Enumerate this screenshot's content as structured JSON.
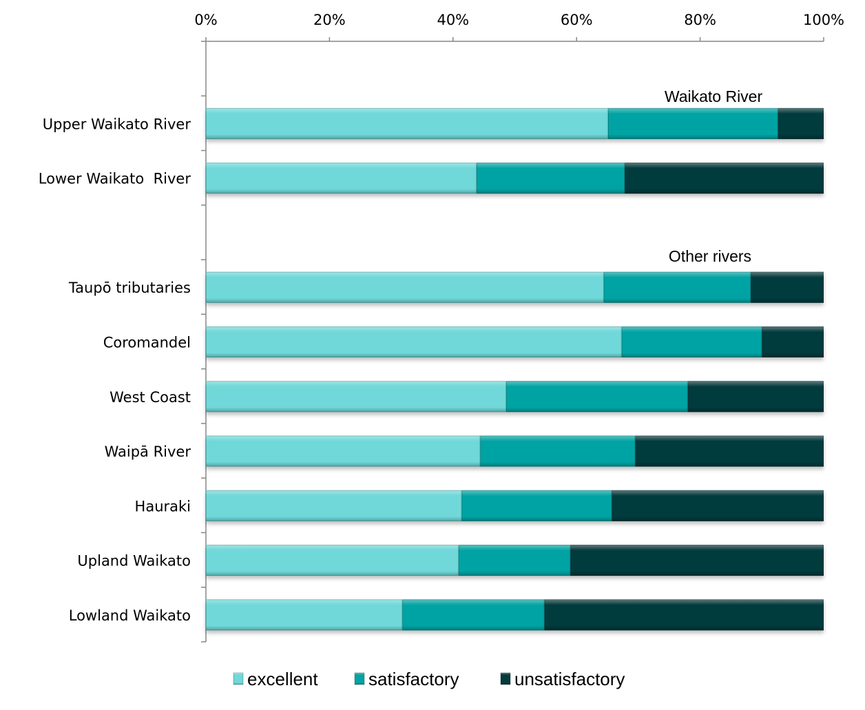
{
  "chart_data": {
    "type": "bar",
    "orientation": "horizontal",
    "stacked": "percent",
    "title": "",
    "xlabel": "",
    "ylabel": "",
    "xlim": [
      0,
      100
    ],
    "x_ticks": [
      "0%",
      "20%",
      "40%",
      "60%",
      "80%",
      "100%"
    ],
    "x_axis_position": "top",
    "grid": false,
    "legend_position": "bottom",
    "categories": [
      "",
      "Upper Waikato River",
      "Lower Waikato  River",
      "",
      "Taupō tributaries",
      "Coromandel",
      "West Coast",
      "Waipā River",
      "Hauraki",
      "Upland Waikato",
      "Lowland Waikato"
    ],
    "series": [
      {
        "name": "excellent",
        "color": "#6fd8d8",
        "values": [
          null,
          65.1,
          43.8,
          null,
          64.4,
          67.3,
          48.6,
          44.4,
          41.4,
          40.9,
          31.8
        ]
      },
      {
        "name": "satisfactory",
        "color": "#05a3a3",
        "values": [
          null,
          27.5,
          24.0,
          null,
          23.8,
          22.7,
          29.4,
          25.1,
          24.3,
          18.1,
          23.0
        ]
      },
      {
        "name": "unsatisfactory",
        "color": "#063a3c",
        "values": [
          null,
          7.4,
          32.2,
          null,
          11.8,
          10.0,
          22.0,
          30.5,
          34.3,
          41.0,
          45.2
        ]
      }
    ],
    "annotations": [
      {
        "text": "Waikato River",
        "category": "Upper Waikato River"
      },
      {
        "text": "Other rivers",
        "category": "Taupō tributaries"
      }
    ]
  }
}
